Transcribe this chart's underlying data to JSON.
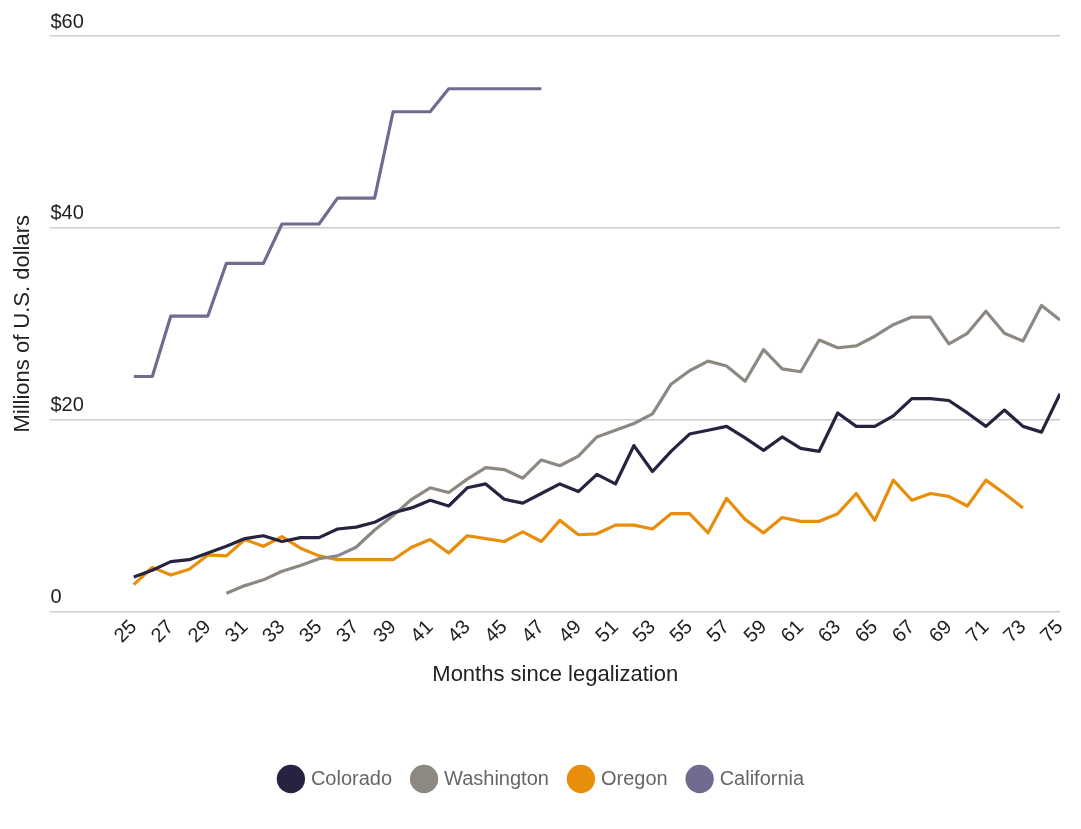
{
  "chart_data": {
    "type": "line",
    "xlabel": "Months since legalization",
    "ylabel": "Millions of U.S. dollars",
    "x": [
      25,
      26,
      27,
      28,
      29,
      30,
      31,
      32,
      33,
      34,
      35,
      36,
      37,
      38,
      39,
      40,
      41,
      42,
      43,
      44,
      45,
      46,
      47,
      48,
      49,
      50,
      51,
      52,
      53,
      54,
      55,
      56,
      57,
      58,
      59,
      60,
      61,
      62,
      63,
      64,
      65,
      66,
      67,
      68,
      69,
      70,
      71,
      72,
      73,
      74,
      75
    ],
    "xlim": [
      20.5,
      75
    ],
    "xticks": [
      25,
      27,
      29,
      31,
      33,
      35,
      37,
      39,
      41,
      43,
      45,
      47,
      49,
      51,
      53,
      55,
      57,
      59,
      61,
      63,
      65,
      67,
      69,
      71,
      73,
      75
    ],
    "ylim": [
      0,
      60
    ],
    "yticks": [
      {
        "value": 0,
        "label": "0"
      },
      {
        "value": 20,
        "label": "$20"
      },
      {
        "value": 40,
        "label": "$40"
      },
      {
        "value": 60,
        "label": "$60"
      }
    ],
    "grid": "y",
    "legend": "bottom",
    "marker": "none",
    "line_style": "solid",
    "series": [
      {
        "name": "Colorado",
        "color": "#262340",
        "values": [
          3.6,
          4.3,
          5.2,
          5.4,
          6.1,
          6.8,
          7.6,
          7.9,
          7.3,
          7.7,
          7.7,
          8.6,
          8.8,
          9.3,
          10.3,
          10.8,
          11.6,
          11.0,
          12.9,
          13.3,
          11.7,
          11.3,
          12.3,
          13.3,
          12.5,
          14.3,
          13.3,
          17.3,
          14.6,
          16.7,
          18.5,
          18.9,
          19.3,
          18.1,
          16.8,
          18.2,
          17.0,
          16.7,
          20.7,
          19.3,
          19.3,
          20.4,
          22.2,
          22.2,
          22.0,
          20.7,
          19.3,
          21.0,
          19.3,
          18.7,
          22.7
        ]
      },
      {
        "name": "Washington",
        "color": "#8d8881",
        "values": [
          null,
          null,
          null,
          null,
          null,
          1.9,
          2.7,
          3.3,
          4.2,
          4.8,
          5.5,
          5.8,
          6.7,
          8.5,
          10.0,
          11.7,
          12.9,
          12.4,
          13.8,
          15.0,
          14.8,
          13.9,
          15.8,
          15.2,
          16.2,
          18.2,
          18.9,
          19.6,
          20.6,
          23.7,
          25.1,
          26.1,
          25.6,
          24.0,
          27.3,
          25.3,
          25.0,
          28.3,
          27.5,
          27.7,
          28.7,
          29.9,
          30.7,
          30.7,
          27.9,
          29.0,
          31.3,
          29.0,
          28.2,
          31.9,
          30.4
        ]
      },
      {
        "name": "Oregon",
        "color": "#e98e0a",
        "values": [
          2.8,
          4.6,
          3.8,
          4.4,
          5.9,
          5.8,
          7.5,
          6.8,
          7.8,
          6.6,
          5.8,
          5.4,
          5.4,
          5.4,
          5.4,
          6.7,
          7.5,
          6.1,
          7.9,
          7.6,
          7.3,
          8.3,
          7.3,
          9.5,
          8.0,
          8.1,
          9.0,
          9.0,
          8.6,
          10.2,
          10.2,
          8.2,
          11.8,
          9.6,
          8.2,
          9.8,
          9.4,
          9.4,
          10.2,
          12.3,
          9.5,
          13.7,
          11.6,
          12.3,
          12.0,
          11.0,
          13.7,
          12.3,
          10.8,
          null,
          null
        ]
      },
      {
        "name": "California",
        "color": "#726b8f",
        "values": [
          24.5,
          24.5,
          30.8,
          30.8,
          30.8,
          36.3,
          36.3,
          36.3,
          40.4,
          40.4,
          40.4,
          43.1,
          43.1,
          43.1,
          52.1,
          52.1,
          52.1,
          54.5,
          54.5,
          54.5,
          54.5,
          54.5,
          54.5,
          null,
          null,
          null,
          null,
          null,
          null,
          null,
          null,
          null,
          null,
          null,
          null,
          null,
          null,
          null,
          null,
          null,
          null,
          null,
          null,
          null,
          null,
          null,
          null,
          null,
          null,
          null,
          null
        ]
      }
    ]
  }
}
